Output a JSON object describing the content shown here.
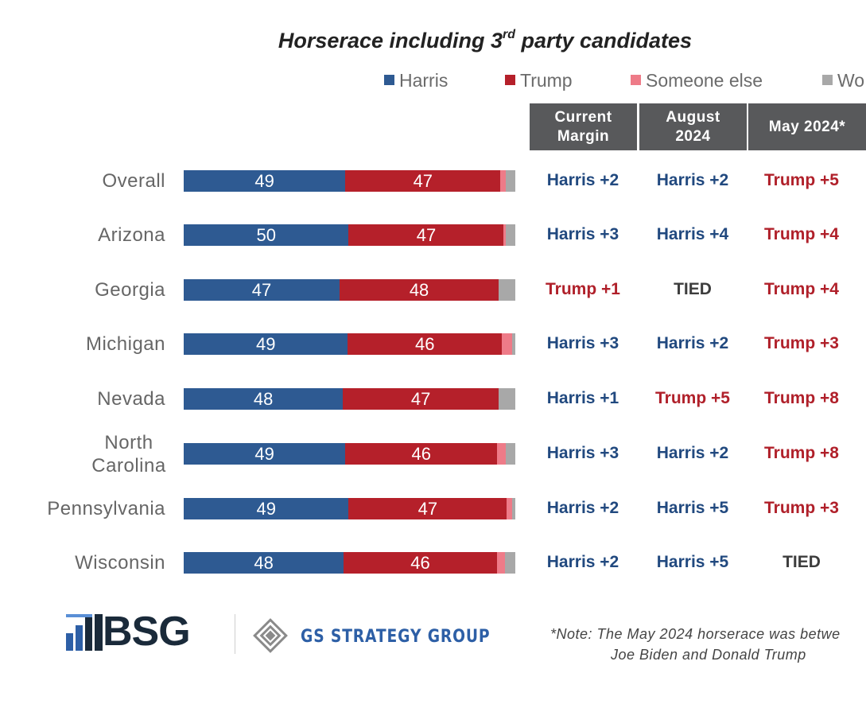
{
  "title": {
    "main": "Horserace including 3",
    "sup": "rd",
    "rest": " party candidates"
  },
  "colors": {
    "harris": "#2e5a92",
    "trump": "#b5202a",
    "someone_else": "#ee7b88",
    "wont_vote": "#a8a8a8",
    "header_bg": "#58595b",
    "blue_text": "#21497f",
    "red_text": "#b0202a",
    "tied_text": "#3d3d3d"
  },
  "legend": [
    {
      "label": "Harris",
      "color_key": "harris"
    },
    {
      "label": "Trump",
      "color_key": "trump"
    },
    {
      "label": "Someone else",
      "color_key": "someone_else"
    },
    {
      "label": "Wo",
      "color_key": "wont_vote"
    }
  ],
  "table_headers": [
    "Current Margin",
    "August 2024",
    "May 2024*"
  ],
  "chart_data": {
    "type": "bar",
    "orientation": "horizontal",
    "stacked": true,
    "title": "Horserace including 3rd party candidates",
    "categories": [
      "Overall",
      "Arizona",
      "Georgia",
      "Michigan",
      "Nevada",
      "North Carolina",
      "Pennsylvania",
      "Wisconsin"
    ],
    "series": [
      {
        "name": "Harris",
        "values": [
          49,
          50,
          47,
          49,
          48,
          49,
          49,
          48
        ]
      },
      {
        "name": "Trump",
        "values": [
          47,
          47,
          48,
          46,
          47,
          46,
          47,
          46
        ]
      },
      {
        "name": "Someone else",
        "values": [
          1.5,
          0.5,
          0,
          3,
          0,
          2.5,
          1.5,
          2.5
        ]
      },
      {
        "name": "Wo",
        "values": [
          3,
          3,
          5,
          1,
          5,
          3,
          1,
          3
        ]
      }
    ],
    "data_label_series": [
      "Harris",
      "Trump"
    ],
    "legend_position": "top",
    "grid": false
  },
  "margins": [
    {
      "current": "Harris +2",
      "august": "Harris +2",
      "may": "Trump +5"
    },
    {
      "current": "Harris +3",
      "august": "Harris +4",
      "may": "Trump +4"
    },
    {
      "current": "Trump +1",
      "august": "TIED",
      "may": "Trump +4"
    },
    {
      "current": "Harris +3",
      "august": "Harris +2",
      "may": "Trump +3"
    },
    {
      "current": "Harris +1",
      "august": "Trump +5",
      "may": "Trump +8"
    },
    {
      "current": "Harris +3",
      "august": "Harris +2",
      "may": "Trump +8"
    },
    {
      "current": "Harris +2",
      "august": "Harris +5",
      "may": "Trump +3"
    },
    {
      "current": "Harris +2",
      "august": "Harris +5",
      "may": "TIED"
    }
  ],
  "footer": {
    "bsg_logo_text": "BSG",
    "gs_logo_text": "GS STRATEGY GROUP",
    "note_line1": "*Note: The May 2024 horserace was betwe",
    "note_line2": "Joe Biden and Donald Trump"
  }
}
